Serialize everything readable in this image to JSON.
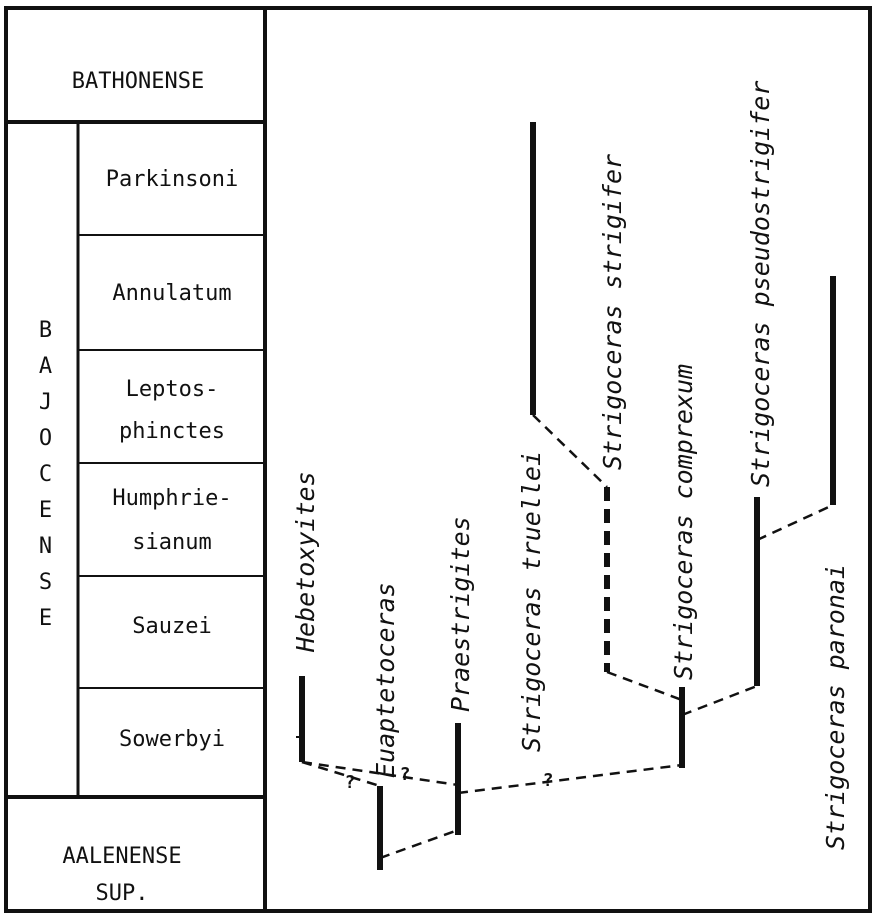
{
  "stages": {
    "upper": "BATHONENSE",
    "middle": "BAJOCENSE",
    "lower": [
      "AALENENSE",
      "SUP."
    ]
  },
  "zones": [
    [
      "Parkinsoni"
    ],
    [
      "Annulatum"
    ],
    [
      "Leptos-",
      "phinctes"
    ],
    [
      "Humphrie-",
      "sianum"
    ],
    [
      "Sauzei"
    ],
    [
      "Sowerbyi"
    ]
  ],
  "taxa": [
    "Hebetoxyites",
    "Euaptetoceras",
    "Praestrigites",
    "Strigoceras truellei",
    "Strigoceras strigifer",
    "Strigoceras comprexum",
    "Strigoceras pseudostrigifer",
    "Strigoceras paronai"
  ],
  "uncertain": [
    "?",
    "?",
    "?"
  ]
}
